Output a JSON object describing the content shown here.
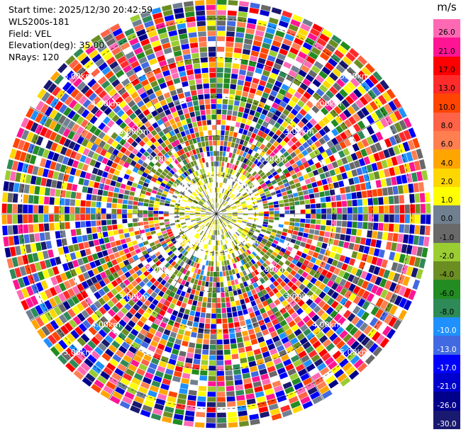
{
  "info": {
    "start_time": "Start time: 2025/12/30 20:42:59",
    "station": "WLS200s-181",
    "field": "Field: VEL",
    "elevation": "Elevation(deg): 35.00",
    "nrays": "NRays: 120"
  },
  "colorbar": {
    "unit": "m/s",
    "labels": [
      "26.0",
      "21.0",
      "17.0",
      "13.0",
      "10.0",
      "8.0",
      "6.0",
      "4.0",
      "2.0",
      "1.0",
      "0.0",
      "-1.0",
      "-2.0",
      "-4.0",
      "-6.0",
      "-8.0",
      "-10.0",
      "-13.0",
      "-17.0",
      "-21.0",
      "-26.0",
      "-30.0"
    ],
    "colors": [
      "#ff69b4",
      "#ff1493",
      "#ff0000",
      "#ff2a2a",
      "#ff4500",
      "#ff6347",
      "#ff7f50",
      "#ffa500",
      "#ffd700",
      "#ffff00",
      "#708090",
      "#696969",
      "#9acd32",
      "#6b8e23",
      "#228b22",
      "#2e8b57",
      "#1e90ff",
      "#4169e1",
      "#0000ff",
      "#0000cd",
      "#00008b",
      "#191970"
    ]
  },
  "chart_data": {
    "type": "heatmap",
    "title": "",
    "projection": "polar",
    "nrays": 120,
    "range_ring_labels": [
      "1.00km",
      "2.00km",
      "3.00km",
      "4.00km",
      "5.00km"
    ],
    "range_km_max": 5.5,
    "value_min": -30.0,
    "value_max": 26.0,
    "grid": true
  }
}
